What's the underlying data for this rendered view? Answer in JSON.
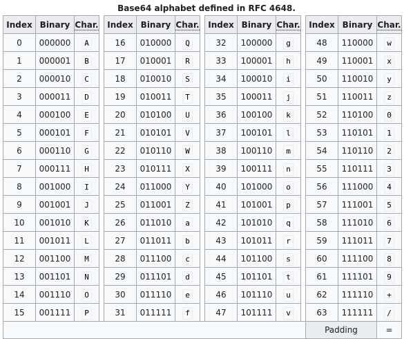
{
  "caption": "Base64 alphabet defined in RFC 4648.",
  "headers": {
    "index": "Index",
    "binary": "Binary",
    "char": "Char."
  },
  "groups": [
    [
      [
        "0",
        "000000",
        "A"
      ],
      [
        "1",
        "000001",
        "B"
      ],
      [
        "2",
        "000010",
        "C"
      ],
      [
        "3",
        "000011",
        "D"
      ],
      [
        "4",
        "000100",
        "E"
      ],
      [
        "5",
        "000101",
        "F"
      ],
      [
        "6",
        "000110",
        "G"
      ],
      [
        "7",
        "000111",
        "H"
      ],
      [
        "8",
        "001000",
        "I"
      ],
      [
        "9",
        "001001",
        "J"
      ],
      [
        "10",
        "001010",
        "K"
      ],
      [
        "11",
        "001011",
        "L"
      ],
      [
        "12",
        "001100",
        "M"
      ],
      [
        "13",
        "001101",
        "N"
      ],
      [
        "14",
        "001110",
        "O"
      ],
      [
        "15",
        "001111",
        "P"
      ]
    ],
    [
      [
        "16",
        "010000",
        "Q"
      ],
      [
        "17",
        "010001",
        "R"
      ],
      [
        "18",
        "010010",
        "S"
      ],
      [
        "19",
        "010011",
        "T"
      ],
      [
        "20",
        "010100",
        "U"
      ],
      [
        "21",
        "010101",
        "V"
      ],
      [
        "22",
        "010110",
        "W"
      ],
      [
        "23",
        "010111",
        "X"
      ],
      [
        "24",
        "011000",
        "Y"
      ],
      [
        "25",
        "011001",
        "Z"
      ],
      [
        "26",
        "011010",
        "a"
      ],
      [
        "27",
        "011011",
        "b"
      ],
      [
        "28",
        "011100",
        "c"
      ],
      [
        "29",
        "011101",
        "d"
      ],
      [
        "30",
        "011110",
        "e"
      ],
      [
        "31",
        "011111",
        "f"
      ]
    ],
    [
      [
        "32",
        "100000",
        "g"
      ],
      [
        "33",
        "100001",
        "h"
      ],
      [
        "34",
        "100010",
        "i"
      ],
      [
        "35",
        "100011",
        "j"
      ],
      [
        "36",
        "100100",
        "k"
      ],
      [
        "37",
        "100101",
        "l"
      ],
      [
        "38",
        "100110",
        "m"
      ],
      [
        "39",
        "100111",
        "n"
      ],
      [
        "40",
        "101000",
        "o"
      ],
      [
        "41",
        "101001",
        "p"
      ],
      [
        "42",
        "101010",
        "q"
      ],
      [
        "43",
        "101011",
        "r"
      ],
      [
        "44",
        "101100",
        "s"
      ],
      [
        "45",
        "101101",
        "t"
      ],
      [
        "46",
        "101110",
        "u"
      ],
      [
        "47",
        "101111",
        "v"
      ]
    ],
    [
      [
        "48",
        "110000",
        "w"
      ],
      [
        "49",
        "110001",
        "x"
      ],
      [
        "50",
        "110010",
        "y"
      ],
      [
        "51",
        "110011",
        "z"
      ],
      [
        "52",
        "110100",
        "0"
      ],
      [
        "53",
        "110101",
        "1"
      ],
      [
        "54",
        "110110",
        "2"
      ],
      [
        "55",
        "110111",
        "3"
      ],
      [
        "56",
        "111000",
        "4"
      ],
      [
        "57",
        "111001",
        "5"
      ],
      [
        "58",
        "111010",
        "6"
      ],
      [
        "59",
        "111011",
        "7"
      ],
      [
        "60",
        "111100",
        "8"
      ],
      [
        "61",
        "111101",
        "9"
      ],
      [
        "62",
        "111110",
        "+"
      ],
      [
        "63",
        "111111",
        "/"
      ]
    ]
  ],
  "padding": {
    "label": "Padding",
    "char": "="
  }
}
